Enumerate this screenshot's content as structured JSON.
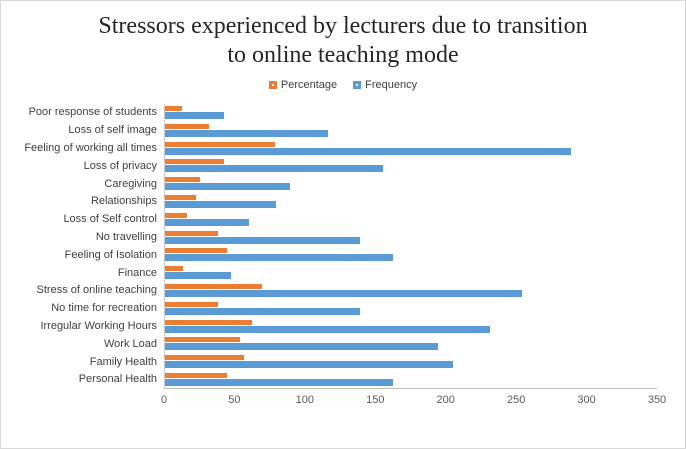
{
  "title": "Stressors experienced by lecturers due to transition to online teaching mode",
  "chart_data": {
    "type": "bar",
    "orientation": "horizontal",
    "title": "Stressors experienced by lecturers due to transition to online teaching mode",
    "categories": [
      "Poor response of students",
      "Loss of self image",
      "Feeling of working all times",
      "Loss of privacy",
      "Caregiving",
      "Relationships",
      "Loss of Self control",
      "No travelling",
      "Feeling of Isolation",
      "Finance",
      "Stress of online teaching",
      "No time for recreation",
      "Irregular Working Hours",
      "Work Load",
      "Family Health",
      "Personal Health"
    ],
    "series": [
      {
        "name": "Percentage",
        "color": "#ED7D31",
        "values": [
          12,
          31,
          78,
          42,
          25,
          22,
          16,
          38,
          44,
          13,
          69,
          38,
          62,
          53,
          56,
          44
        ]
      },
      {
        "name": "Frequency",
        "color": "#5B9BD5",
        "values": [
          42,
          116,
          289,
          155,
          89,
          79,
          60,
          139,
          162,
          47,
          254,
          139,
          231,
          194,
          205,
          162
        ]
      }
    ],
    "xlabel": "",
    "ylabel": "",
    "xlim": [
      0,
      350
    ],
    "xticks": [
      0,
      50,
      100,
      150,
      200,
      250,
      300,
      350
    ],
    "grid": false,
    "legend_position": "top",
    "axis_color": "#bfbfbf",
    "label_color": "#404040",
    "tick_color": "#595959"
  }
}
